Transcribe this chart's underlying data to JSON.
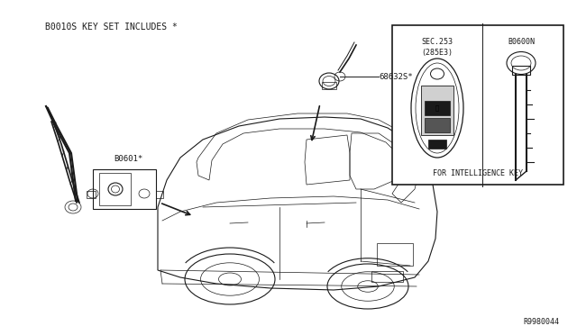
{
  "bg_color": "#ffffff",
  "line_color": "#1a1a1a",
  "text_color": "#1a1a1a",
  "title_text": "B0010S KEY SET INCLUDES *",
  "label_68632": "68632S*",
  "label_80601": "B0601*",
  "label_sec253": "SEC.253",
  "label_285E3": "(285E3)",
  "label_80600N": "B0600N",
  "label_intel": "FOR INTELLIGENCE KEY",
  "label_r998": "R9980044",
  "font_monospace": "monospace"
}
